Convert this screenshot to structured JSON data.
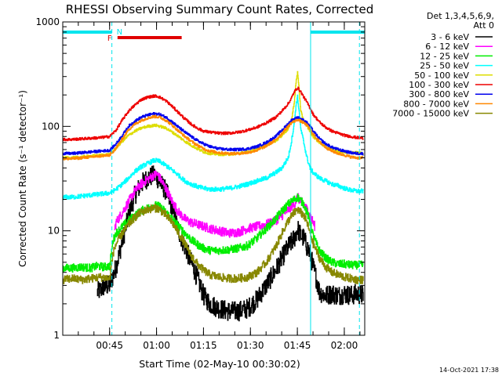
{
  "chart_data": {
    "type": "line",
    "title": "RHESSI Observing Summary Count Rates, Corrected",
    "xlabel": "Start Time (02-May-10 00:30:02)",
    "ylabel": "Corrected Count Rate (s⁻¹ detector⁻¹)",
    "yscale": "log",
    "xlim_minutes": [
      0,
      96.5
    ],
    "ylim": [
      1,
      1000
    ],
    "x_ticks": [
      {
        "label": "00:45",
        "min": 14.97
      },
      {
        "label": "01:00",
        "min": 29.97
      },
      {
        "label": "01:15",
        "min": 44.97
      },
      {
        "label": "01:30",
        "min": 59.97
      },
      {
        "label": "01:45",
        "min": 74.97
      },
      {
        "label": "02:00",
        "min": 89.97
      }
    ],
    "y_ticks": [
      {
        "label": "1",
        "value": 1
      },
      {
        "label": "10",
        "value": 10
      },
      {
        "label": "100",
        "value": 100
      },
      {
        "label": "1000",
        "value": 1000
      }
    ],
    "legend_header": [
      "Det 1,3,4,5,6,9,",
      "Att 0"
    ],
    "legend_placement": "right",
    "footer_timestamp": "14-Oct-2021 17:38",
    "flags": {
      "night_label": "N",
      "flare_label": "F",
      "night_color": "#00e5ee",
      "flare_color": "#e00000",
      "night_intervals_min": [
        [
          0,
          15.7
        ],
        [
          79.2,
          96.5
        ]
      ],
      "flare_interval_min": [
        17.5,
        38.0
      ],
      "vertical_solid_min": [
        0,
        79.2
      ],
      "vertical_dashed_min": [
        15.7,
        94.8
      ]
    },
    "series": [
      {
        "name": "3 - 6 keV",
        "color": "#000000",
        "x": [
          11,
          12,
          13,
          15,
          17,
          19,
          21,
          23,
          25,
          27,
          29,
          30,
          31,
          33,
          35,
          37,
          39,
          41,
          43,
          45,
          47,
          50,
          53,
          56,
          59,
          62,
          65,
          68,
          70,
          72,
          74,
          75,
          76,
          77,
          78,
          79,
          80,
          81,
          82,
          84,
          86,
          88,
          90,
          92,
          94,
          96
        ],
        "y": [
          2.6,
          2.7,
          2.9,
          3.0,
          4.5,
          8,
          14,
          22,
          28,
          32,
          34,
          33,
          29,
          24,
          16,
          10,
          7,
          5,
          3.5,
          2.4,
          2.0,
          1.8,
          1.7,
          1.7,
          1.8,
          2.2,
          3.0,
          4.2,
          5.5,
          7,
          8.5,
          10.5,
          9,
          8.5,
          7,
          6,
          4.5,
          3.5,
          2.6,
          2.4,
          2.5,
          2.4,
          2.5,
          2.4,
          2.5,
          2.4
        ]
      },
      {
        "name": "6 - 12 keV",
        "color": "#ff00ff",
        "x": [
          16.5,
          17,
          19,
          21,
          23,
          25,
          27,
          29,
          30,
          31,
          33,
          35,
          37,
          39,
          41,
          43,
          45,
          47,
          50,
          53,
          56,
          59,
          62,
          65,
          68,
          70,
          72,
          74,
          75,
          76,
          77,
          78,
          79,
          80,
          80.5
        ],
        "y": [
          10,
          12,
          15,
          19,
          24,
          28,
          31,
          34,
          35,
          32,
          25,
          19,
          15,
          13,
          12,
          11.5,
          11,
          10.5,
          10,
          9.5,
          9.7,
          10.5,
          11,
          11.5,
          12.5,
          14,
          16,
          18,
          21,
          19,
          18,
          16,
          14,
          12,
          11
        ]
      },
      {
        "name": "12 - 25 keV",
        "color": "#00ee00",
        "x": [
          0,
          3,
          6,
          9,
          11,
          13,
          15,
          16,
          17,
          19,
          21,
          23,
          25,
          27,
          29,
          30,
          31,
          33,
          35,
          37,
          39,
          41,
          43,
          45,
          47,
          50,
          53,
          56,
          59,
          62,
          65,
          68,
          70,
          72,
          74,
          75,
          76,
          77,
          78,
          79,
          80,
          81,
          82,
          84,
          86,
          88,
          90,
          92,
          94,
          96
        ],
        "y": [
          4.4,
          4.4,
          4.5,
          4.4,
          4.6,
          4.5,
          4.6,
          8,
          9.5,
          11,
          12.5,
          14,
          15.5,
          16.5,
          17.5,
          17.5,
          17,
          15,
          13,
          11,
          9.5,
          8.2,
          7.4,
          6.8,
          6.5,
          6.5,
          6.6,
          6.8,
          7.2,
          8.5,
          10.5,
          13,
          15.5,
          18,
          20,
          21,
          19.5,
          18,
          15,
          12,
          9,
          7.5,
          6.5,
          5.5,
          5.0,
          4.8,
          4.8,
          4.7,
          4.7,
          4.7
        ]
      },
      {
        "name": "25 - 50 keV",
        "color": "#00ffff",
        "x": [
          0,
          3,
          6,
          9,
          12,
          15,
          17,
          19,
          21,
          23,
          25,
          27,
          29,
          30,
          31,
          33,
          35,
          37,
          39,
          41,
          43,
          45,
          47,
          50,
          53,
          56,
          59,
          62,
          65,
          68,
          70,
          72,
          73,
          74,
          74.5,
          75,
          75.5,
          76,
          77,
          78,
          79,
          80,
          82,
          84,
          86,
          88,
          90,
          92,
          94,
          96
        ],
        "y": [
          21,
          21,
          21.5,
          22,
          22.5,
          23,
          25,
          28,
          32,
          37,
          41,
          44,
          47,
          47,
          46,
          42,
          38,
          34,
          30,
          28,
          26.5,
          25.5,
          25,
          25,
          25.5,
          26.5,
          28,
          30,
          32,
          36,
          40,
          50,
          70,
          110,
          160,
          190,
          140,
          95,
          70,
          50,
          40,
          36,
          32,
          30,
          28,
          27,
          25.5,
          24.5,
          24,
          24
        ]
      },
      {
        "name": "50 - 100 keV",
        "color": "#dddd00",
        "x": [
          0,
          3,
          6,
          9,
          12,
          15,
          17,
          19,
          21,
          23,
          25,
          27,
          29,
          30,
          31,
          33,
          35,
          37,
          39,
          41,
          43,
          45,
          47,
          50,
          53,
          56,
          59,
          62,
          65,
          68,
          70,
          72,
          73,
          74,
          74.5,
          75,
          75.5,
          76,
          77,
          78,
          79,
          80,
          82,
          84,
          86,
          88,
          90,
          92,
          94,
          96
        ],
        "y": [
          50,
          50,
          51,
          52,
          53,
          54,
          62,
          72,
          82,
          90,
          96,
          100,
          102,
          102,
          100,
          96,
          88,
          80,
          72,
          66,
          61,
          57,
          55,
          54,
          54,
          55,
          57,
          60,
          66,
          73,
          82,
          95,
          110,
          175,
          260,
          330,
          230,
          140,
          112,
          100,
          90,
          80,
          70,
          64,
          60,
          58,
          57,
          56,
          56,
          55
        ]
      },
      {
        "name": "100 - 300 keV",
        "color": "#ee0000",
        "x": [
          0,
          3,
          6,
          9,
          12,
          15,
          17,
          19,
          21,
          23,
          25,
          27,
          29,
          30,
          31,
          33,
          35,
          37,
          39,
          41,
          43,
          45,
          47,
          50,
          53,
          56,
          59,
          62,
          65,
          68,
          70,
          72,
          73,
          74,
          75,
          76,
          77,
          78,
          79,
          80,
          82,
          84,
          86,
          88,
          90,
          92,
          94,
          96
        ],
        "y": [
          75,
          75,
          76,
          77,
          78,
          80,
          92,
          115,
          140,
          160,
          180,
          190,
          195,
          195,
          190,
          175,
          155,
          135,
          118,
          105,
          96,
          90,
          88,
          86,
          86,
          88,
          92,
          98,
          108,
          122,
          140,
          165,
          185,
          215,
          235,
          215,
          190,
          170,
          150,
          130,
          110,
          98,
          90,
          86,
          82,
          80,
          78,
          77
        ]
      },
      {
        "name": "300 - 800 keV",
        "color": "#0000ee",
        "x": [
          0,
          3,
          6,
          9,
          12,
          15,
          17,
          19,
          21,
          23,
          25,
          27,
          29,
          30,
          31,
          33,
          35,
          37,
          39,
          41,
          43,
          45,
          47,
          50,
          53,
          56,
          59,
          62,
          65,
          68,
          70,
          72,
          73,
          74,
          75,
          76,
          77,
          78,
          79,
          80,
          82,
          84,
          86,
          88,
          90,
          92,
          94,
          96
        ],
        "y": [
          55,
          55,
          56,
          57,
          58,
          59,
          68,
          82,
          100,
          112,
          122,
          128,
          132,
          132,
          130,
          122,
          110,
          98,
          88,
          80,
          73,
          68,
          64,
          61,
          60,
          60,
          61,
          64,
          70,
          80,
          92,
          106,
          114,
          118,
          122,
          118,
          114,
          108,
          100,
          90,
          76,
          68,
          63,
          60,
          58,
          56,
          55,
          55
        ]
      },
      {
        "name": "800 - 7000 keV",
        "color": "#ff8800",
        "x": [
          0,
          3,
          6,
          9,
          12,
          15,
          17,
          19,
          21,
          23,
          25,
          27,
          29,
          30,
          31,
          33,
          35,
          37,
          39,
          41,
          43,
          45,
          47,
          50,
          53,
          56,
          59,
          62,
          65,
          68,
          70,
          72,
          73,
          74,
          75,
          76,
          77,
          78,
          79,
          80,
          82,
          84,
          86,
          88,
          90,
          92,
          94,
          96
        ],
        "y": [
          49,
          49,
          50,
          51,
          52,
          53,
          62,
          76,
          93,
          105,
          114,
          120,
          124,
          124,
          122,
          114,
          102,
          90,
          80,
          72,
          66,
          61,
          58,
          56,
          55,
          55,
          56,
          59,
          65,
          74,
          86,
          100,
          108,
          112,
          116,
          112,
          108,
          102,
          94,
          84,
          71,
          63,
          58,
          55,
          53,
          51,
          50,
          50
        ]
      },
      {
        "name": "7000 - 15000 keV",
        "color": "#888800",
        "x": [
          0,
          3,
          6,
          9,
          12,
          15,
          16,
          17,
          19,
          21,
          23,
          25,
          27,
          29,
          30,
          31,
          33,
          35,
          37,
          39,
          41,
          43,
          45,
          47,
          50,
          53,
          56,
          59,
          62,
          65,
          68,
          70,
          72,
          74,
          75,
          76,
          77,
          78,
          79,
          80,
          82,
          84,
          86,
          88,
          90,
          92,
          94,
          96
        ],
        "y": [
          3.4,
          3.5,
          3.4,
          3.5,
          3.6,
          3.5,
          6,
          7.5,
          9.5,
          11.5,
          13.5,
          15,
          16,
          16.5,
          16.5,
          16,
          14,
          12,
          9.5,
          7.5,
          5.8,
          4.8,
          4.2,
          3.8,
          3.6,
          3.5,
          3.5,
          3.6,
          4.0,
          5.0,
          7.0,
          9.5,
          12.5,
          15,
          16,
          15,
          14,
          12,
          9.5,
          7.5,
          5.5,
          4.5,
          4.0,
          3.8,
          3.6,
          3.5,
          3.4,
          3.4
        ]
      }
    ]
  }
}
